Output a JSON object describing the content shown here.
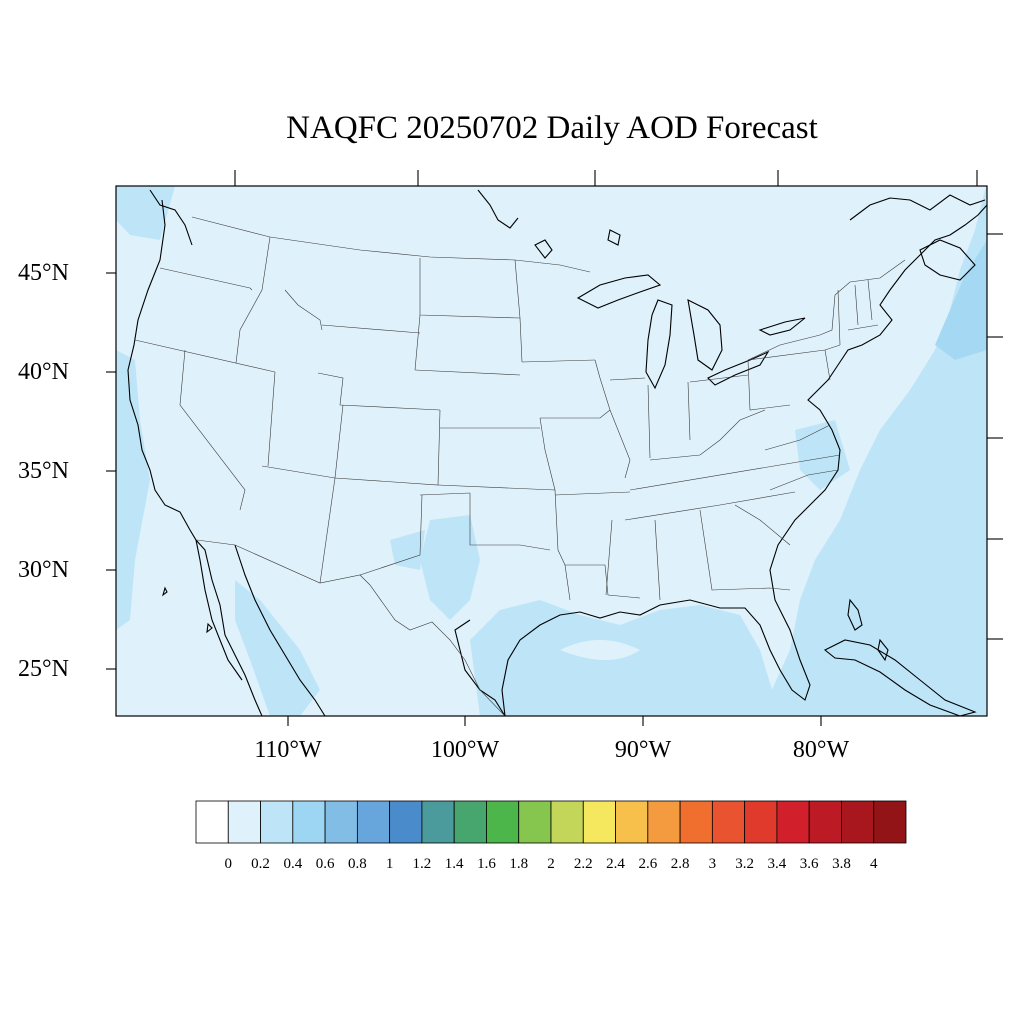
{
  "title": "NAQFC 20250702 Daily AOD Forecast",
  "lat_labels": [
    "45°N",
    "40°N",
    "35°N",
    "30°N",
    "25°N"
  ],
  "lon_labels": [
    "110°W",
    "100°W",
    "90°W",
    "80°W"
  ],
  "colorbar": {
    "labels": [
      "0",
      "0.2",
      "0.4",
      "0.6",
      "0.8",
      "1",
      "1.2",
      "1.4",
      "1.6",
      "1.8",
      "2",
      "2.2",
      "2.4",
      "2.6",
      "2.8",
      "3",
      "3.2",
      "3.4",
      "3.6",
      "3.8",
      "4"
    ],
    "colors": [
      "#ffffff",
      "#dff1fa",
      "#bde5f7",
      "#9dd6f2",
      "#82bde6",
      "#66a6dc",
      "#4a8ccb",
      "#4b9a9c",
      "#47a66e",
      "#4cb64a",
      "#86c54e",
      "#c4d65a",
      "#f6e85e",
      "#f7c04b",
      "#f49a3f",
      "#f06e2e",
      "#ea5330",
      "#df3a2c",
      "#d11f2b",
      "#bc1b26",
      "#a8171e",
      "#921416"
    ]
  },
  "colors": {
    "background_aod": "#dff1fa",
    "moderate_aod": "#bde5f7",
    "higher_aod": "#a7dbf4"
  }
}
